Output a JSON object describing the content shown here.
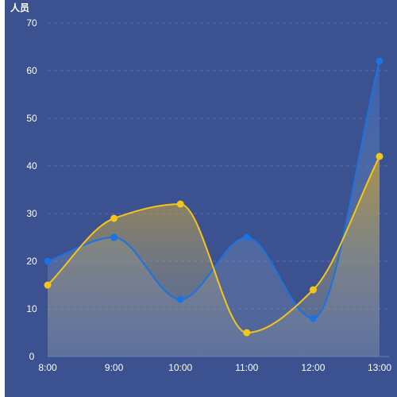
{
  "chart_data": {
    "type": "line",
    "ylabel": "人员",
    "categories": [
      "8:00",
      "9:00",
      "10:00",
      "11:00",
      "12:00",
      "13:00"
    ],
    "ylim": [
      0,
      70
    ],
    "yticks": [
      0,
      10,
      20,
      30,
      40,
      50,
      60,
      70
    ],
    "grid": "horizontal dashed",
    "smooth": true,
    "series": [
      {
        "values": [
          20,
          25,
          12,
          25,
          8,
          62
        ],
        "color": "#1a73e0",
        "area_color": "#3a67b8"
      },
      {
        "values": [
          15,
          29,
          32,
          5,
          14,
          42
        ],
        "color": "#f5c518",
        "area_color": "#c9a02a"
      }
    ]
  }
}
